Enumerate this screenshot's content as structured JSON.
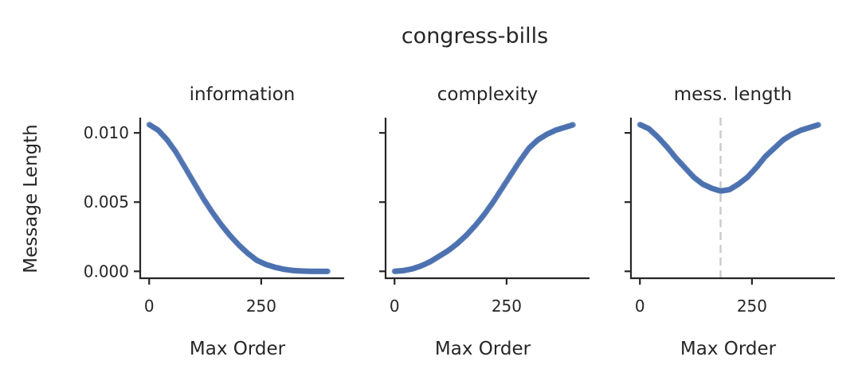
{
  "chart_data": {
    "type": "scatter",
    "title": "congress-bills",
    "ylabel": "Message Length",
    "xlabel": "Max Order",
    "xlim": [
      -20,
      435
    ],
    "ylim": [
      -0.0005,
      0.0111
    ],
    "xticks": [
      0,
      250
    ],
    "yticks": [
      0.0,
      0.005,
      0.01
    ],
    "ytick_labels": [
      "0.000",
      "0.005",
      "0.010"
    ],
    "xtick_labels": [
      "0",
      "250"
    ],
    "color": "#4c72b0",
    "panels": [
      {
        "title": "information",
        "x": [
          0,
          20,
          40,
          60,
          80,
          100,
          120,
          140,
          160,
          180,
          200,
          220,
          240,
          260,
          280,
          300,
          320,
          340,
          360,
          380,
          400
        ],
        "y": [
          0.0106,
          0.0102,
          0.0095,
          0.0086,
          0.0075,
          0.0064,
          0.0053,
          0.0043,
          0.0034,
          0.0026,
          0.0019,
          0.0013,
          0.0008,
          0.0005,
          0.0003,
          0.00015,
          6e-05,
          2e-05,
          0.0,
          0.0,
          0.0
        ]
      },
      {
        "title": "complexity",
        "x": [
          0,
          20,
          40,
          60,
          80,
          100,
          120,
          140,
          160,
          180,
          200,
          220,
          240,
          260,
          280,
          300,
          320,
          340,
          360,
          380,
          400
        ],
        "y": [
          0.0,
          5e-05,
          0.00018,
          0.0004,
          0.0007,
          0.0011,
          0.0015,
          0.002,
          0.0026,
          0.0033,
          0.0041,
          0.005,
          0.006,
          0.007,
          0.008,
          0.0089,
          0.0095,
          0.0099,
          0.0102,
          0.0104,
          0.0106
        ]
      },
      {
        "title": "mess. length",
        "x": [
          0,
          20,
          40,
          60,
          80,
          100,
          120,
          140,
          160,
          180,
          200,
          220,
          240,
          260,
          280,
          300,
          320,
          340,
          360,
          380,
          400
        ],
        "y": [
          0.0106,
          0.0103,
          0.0097,
          0.009,
          0.0082,
          0.0075,
          0.0068,
          0.0063,
          0.006,
          0.0058,
          0.0059,
          0.0063,
          0.0068,
          0.0075,
          0.0083,
          0.0089,
          0.0095,
          0.0099,
          0.0102,
          0.0104,
          0.0106
        ],
        "vline_x": 180
      }
    ]
  }
}
